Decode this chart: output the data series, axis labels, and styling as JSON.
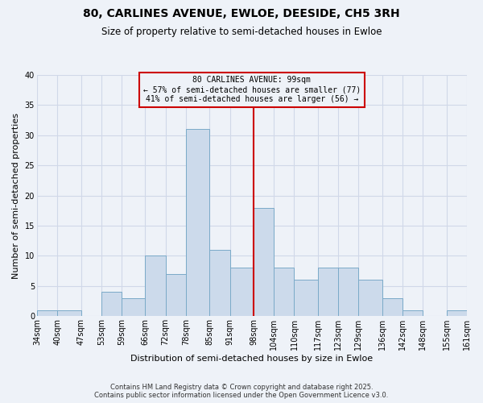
{
  "title": "80, CARLINES AVENUE, EWLOE, DEESIDE, CH5 3RH",
  "subtitle": "Size of property relative to semi-detached houses in Ewloe",
  "xlabel": "Distribution of semi-detached houses by size in Ewloe",
  "ylabel": "Number of semi-detached properties",
  "bin_labels": [
    "34sqm",
    "40sqm",
    "47sqm",
    "53sqm",
    "59sqm",
    "66sqm",
    "72sqm",
    "78sqm",
    "85sqm",
    "91sqm",
    "98sqm",
    "104sqm",
    "110sqm",
    "117sqm",
    "123sqm",
    "129sqm",
    "136sqm",
    "142sqm",
    "148sqm",
    "155sqm",
    "161sqm"
  ],
  "bin_edges": [
    34,
    40,
    47,
    53,
    59,
    66,
    72,
    78,
    85,
    91,
    98,
    104,
    110,
    117,
    123,
    129,
    136,
    142,
    148,
    155,
    161
  ],
  "counts": [
    1,
    1,
    0,
    4,
    3,
    10,
    7,
    31,
    11,
    8,
    18,
    8,
    6,
    8,
    8,
    6,
    3,
    1,
    0,
    1
  ],
  "bar_color": "#ccdaeb",
  "bar_edgecolor": "#7aaac8",
  "vline_x": 98,
  "vline_color": "#cc0000",
  "annotation_title": "80 CARLINES AVENUE: 99sqm",
  "annotation_line1": "← 57% of semi-detached houses are smaller (77)",
  "annotation_line2": "41% of semi-detached houses are larger (56) →",
  "annotation_box_color": "#cc0000",
  "ylim": [
    0,
    40
  ],
  "yticks": [
    0,
    5,
    10,
    15,
    20,
    25,
    30,
    35,
    40
  ],
  "footer1": "Contains HM Land Registry data © Crown copyright and database right 2025.",
  "footer2": "Contains public sector information licensed under the Open Government Licence v3.0.",
  "bg_color": "#eef2f8",
  "grid_color": "#d0d8e8",
  "title_fontsize": 10,
  "subtitle_fontsize": 8.5,
  "axis_label_fontsize": 8,
  "tick_fontsize": 7,
  "footer_fontsize": 6,
  "annotation_fontsize": 7
}
